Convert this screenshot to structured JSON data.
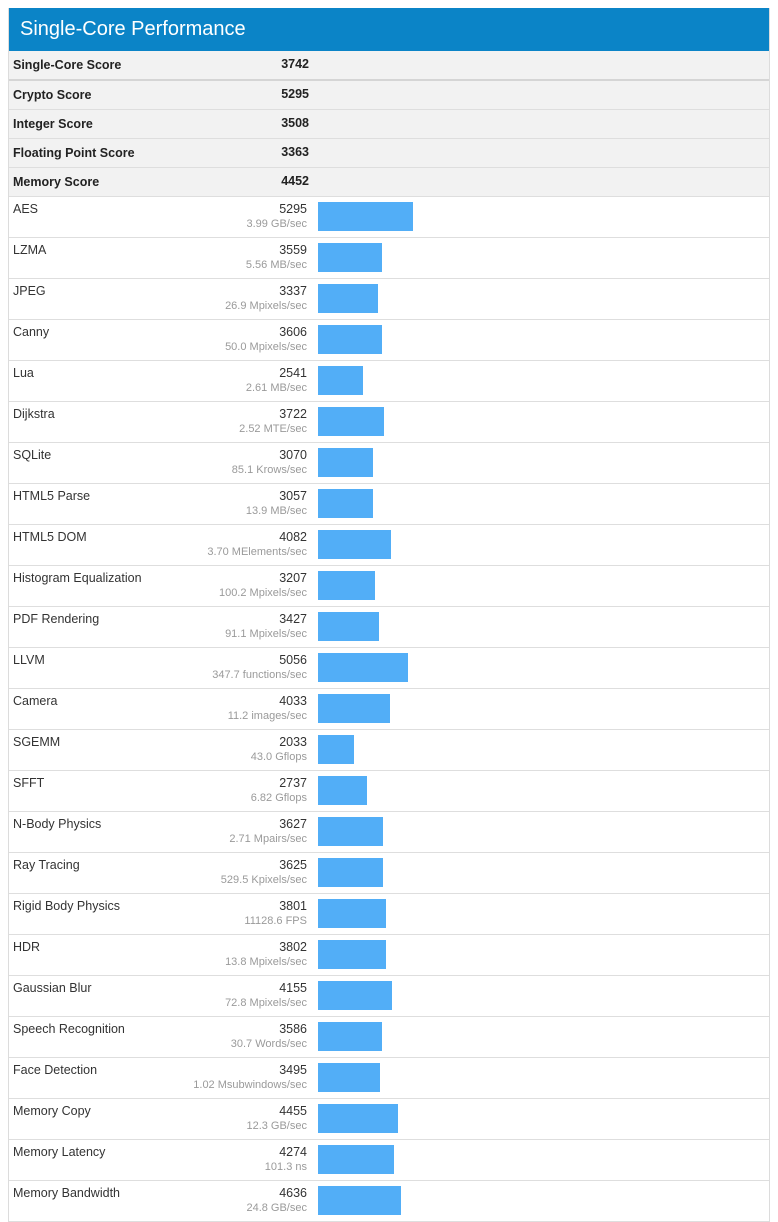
{
  "header": {
    "title": "Single-Core Performance"
  },
  "colors": {
    "header_bg": "#0b84c7",
    "bar": "#52aef7",
    "summary_bg": "#f2f2f2"
  },
  "summary": [
    {
      "label": "Single-Core Score",
      "value": "3742"
    },
    {
      "label": "Crypto Score",
      "value": "5295"
    },
    {
      "label": "Integer Score",
      "value": "3508"
    },
    {
      "label": "Floating Point Score",
      "value": "3363"
    },
    {
      "label": "Memory Score",
      "value": "4452"
    }
  ],
  "benchmarks": [
    {
      "name": "AES",
      "score": "5295",
      "rate": "3.99 GB/sec"
    },
    {
      "name": "LZMA",
      "score": "3559",
      "rate": "5.56 MB/sec"
    },
    {
      "name": "JPEG",
      "score": "3337",
      "rate": "26.9 Mpixels/sec"
    },
    {
      "name": "Canny",
      "score": "3606",
      "rate": "50.0 Mpixels/sec"
    },
    {
      "name": "Lua",
      "score": "2541",
      "rate": "2.61 MB/sec"
    },
    {
      "name": "Dijkstra",
      "score": "3722",
      "rate": "2.52 MTE/sec"
    },
    {
      "name": "SQLite",
      "score": "3070",
      "rate": "85.1 Krows/sec"
    },
    {
      "name": "HTML5 Parse",
      "score": "3057",
      "rate": "13.9 MB/sec"
    },
    {
      "name": "HTML5 DOM",
      "score": "4082",
      "rate": "3.70 MElements/sec"
    },
    {
      "name": "Histogram Equalization",
      "score": "3207",
      "rate": "100.2 Mpixels/sec"
    },
    {
      "name": "PDF Rendering",
      "score": "3427",
      "rate": "91.1 Mpixels/sec"
    },
    {
      "name": "LLVM",
      "score": "5056",
      "rate": "347.7 functions/sec"
    },
    {
      "name": "Camera",
      "score": "4033",
      "rate": "11.2 images/sec"
    },
    {
      "name": "SGEMM",
      "score": "2033",
      "rate": "43.0 Gflops"
    },
    {
      "name": "SFFT",
      "score": "2737",
      "rate": "6.82 Gflops"
    },
    {
      "name": "N-Body Physics",
      "score": "3627",
      "rate": "2.71 Mpairs/sec"
    },
    {
      "name": "Ray Tracing",
      "score": "3625",
      "rate": "529.5 Kpixels/sec"
    },
    {
      "name": "Rigid Body Physics",
      "score": "3801",
      "rate": "11128.6 FPS"
    },
    {
      "name": "HDR",
      "score": "3802",
      "rate": "13.8 Mpixels/sec"
    },
    {
      "name": "Gaussian Blur",
      "score": "4155",
      "rate": "72.8 Mpixels/sec"
    },
    {
      "name": "Speech Recognition",
      "score": "3586",
      "rate": "30.7 Words/sec"
    },
    {
      "name": "Face Detection",
      "score": "3495",
      "rate": "1.02 Msubwindows/sec"
    },
    {
      "name": "Memory Copy",
      "score": "4455",
      "rate": "12.3 GB/sec"
    },
    {
      "name": "Memory Latency",
      "score": "4274",
      "rate": "101.3 ns"
    },
    {
      "name": "Memory Bandwidth",
      "score": "4636",
      "rate": "24.8 GB/sec"
    }
  ]
}
